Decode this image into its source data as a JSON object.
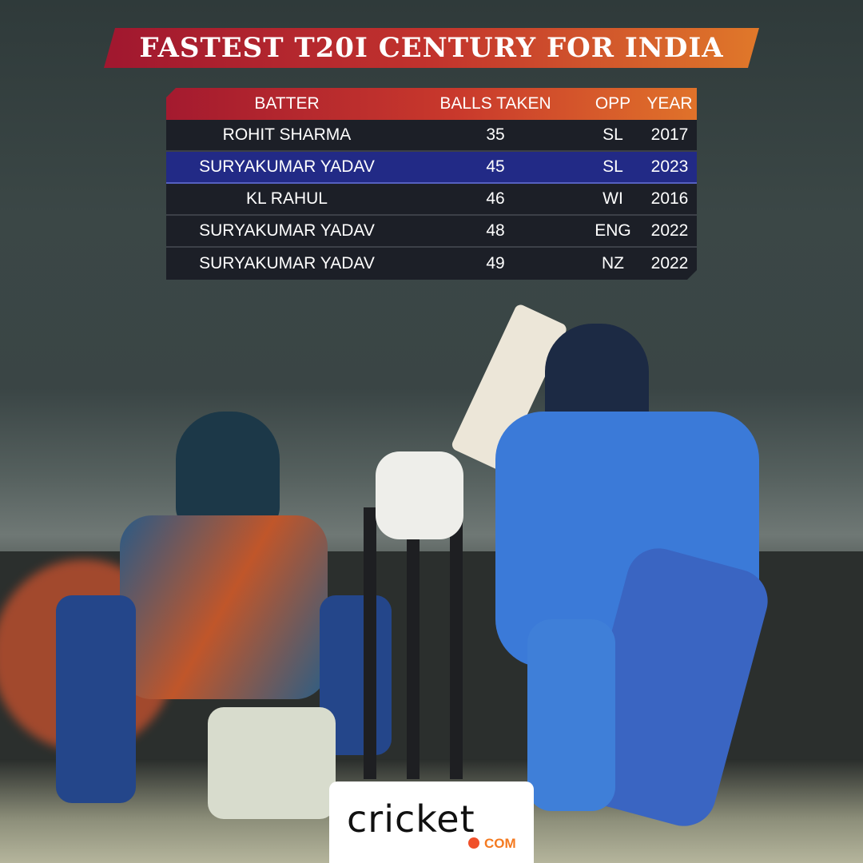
{
  "title": "FASTEST T20I CENTURY FOR INDIA",
  "table": {
    "headers": [
      "BATTER",
      "BALLS TAKEN",
      "OPP",
      "YEAR"
    ],
    "rows": [
      {
        "batter": "ROHIT SHARMA",
        "balls": "35",
        "opp": "SL",
        "year": "2017"
      },
      {
        "batter": "SURYAKUMAR YADAV",
        "balls": "45",
        "opp": "SL",
        "year": "2023",
        "highlighted": true
      },
      {
        "batter": "KL RAHUL",
        "balls": "46",
        "opp": "WI",
        "year": "2016"
      },
      {
        "batter": "SURYAKUMAR YADAV",
        "balls": "48",
        "opp": "ENG",
        "year": "2022"
      },
      {
        "batter": "SURYAKUMAR YADAV",
        "balls": "49",
        "opp": "NZ",
        "year": "2022"
      }
    ]
  },
  "logo": {
    "word": "cricket",
    "suffix": "COM"
  },
  "colors": {
    "banner_start": "#a0172f",
    "banner_end": "#e0782a",
    "highlight_row": "#222a86",
    "row_bg": "#1c1f27"
  }
}
